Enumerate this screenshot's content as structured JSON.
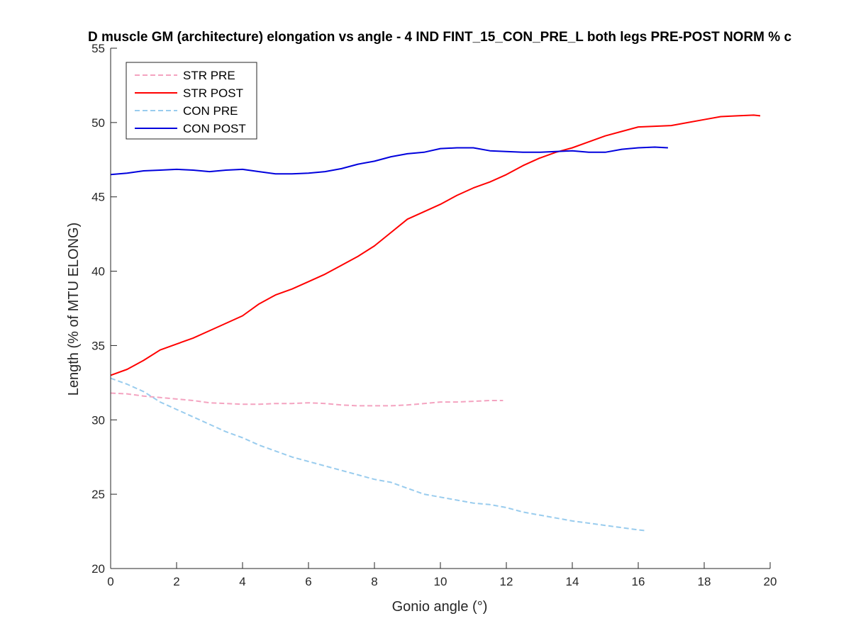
{
  "chart_data": {
    "type": "line",
    "title": "D muscle GM (architecture) elongation vs angle - 4 IND FINT_15_CON_PRE_L both legs PRE-POST NORM % c",
    "xlabel": "Gonio angle (°)",
    "ylabel": "Length (% of MTU ELONG)",
    "xlim": [
      0,
      20
    ],
    "ylim": [
      20,
      55
    ],
    "xticks": [
      0,
      2,
      4,
      6,
      8,
      10,
      12,
      14,
      16,
      18,
      20
    ],
    "yticks": [
      20,
      25,
      30,
      35,
      40,
      45,
      50,
      55
    ],
    "grid": false,
    "legend_position": "top-left",
    "series": [
      {
        "name": "STR PRE",
        "color": "#f4a3c0",
        "style": "dashed",
        "x": [
          0,
          0.5,
          1,
          1.5,
          2,
          2.5,
          3,
          3.5,
          4,
          4.5,
          5,
          5.5,
          6,
          6.5,
          7,
          7.5,
          8,
          8.5,
          9,
          9.5,
          10,
          10.5,
          11,
          11.5,
          11.9
        ],
        "y": [
          31.8,
          31.75,
          31.6,
          31.5,
          31.4,
          31.3,
          31.15,
          31.1,
          31.05,
          31.05,
          31.1,
          31.1,
          31.15,
          31.1,
          31.0,
          30.95,
          30.95,
          30.95,
          31.0,
          31.1,
          31.2,
          31.2,
          31.25,
          31.3,
          31.3
        ]
      },
      {
        "name": "STR POST",
        "color": "#ff0000",
        "style": "solid",
        "x": [
          0,
          0.5,
          1,
          1.5,
          2,
          2.5,
          3,
          3.5,
          4,
          4.5,
          5,
          5.5,
          6,
          6.5,
          7,
          7.5,
          8,
          8.5,
          9,
          9.5,
          10,
          10.5,
          11,
          11.5,
          12,
          12.5,
          13,
          13.5,
          14,
          14.5,
          15,
          15.5,
          16,
          16.5,
          17,
          17.5,
          18,
          18.5,
          19,
          19.5,
          19.7
        ],
        "y": [
          33.0,
          33.4,
          34.0,
          34.7,
          35.1,
          35.5,
          36.0,
          36.5,
          37.0,
          37.8,
          38.4,
          38.8,
          39.3,
          39.8,
          40.4,
          41.0,
          41.7,
          42.6,
          43.5,
          44.0,
          44.5,
          45.1,
          45.6,
          46.0,
          46.5,
          47.1,
          47.6,
          48.0,
          48.3,
          48.7,
          49.1,
          49.4,
          49.7,
          49.75,
          49.8,
          50.0,
          50.2,
          50.4,
          50.45,
          50.5,
          50.45
        ]
      },
      {
        "name": "CON PRE",
        "color": "#99ccee",
        "style": "dashed",
        "x": [
          0,
          0.5,
          1,
          1.5,
          2,
          2.5,
          3,
          3.5,
          4,
          4.5,
          5,
          5.5,
          6,
          6.5,
          7,
          7.5,
          8,
          8.5,
          9,
          9.5,
          10,
          10.5,
          11,
          11.5,
          12,
          12.5,
          13,
          13.5,
          14,
          14.5,
          15,
          15.5,
          16,
          16.2
        ],
        "y": [
          32.8,
          32.4,
          31.9,
          31.2,
          30.7,
          30.2,
          29.7,
          29.2,
          28.8,
          28.3,
          27.9,
          27.5,
          27.2,
          26.9,
          26.6,
          26.3,
          26.0,
          25.8,
          25.4,
          25.0,
          24.8,
          24.6,
          24.4,
          24.3,
          24.1,
          23.8,
          23.6,
          23.4,
          23.2,
          23.05,
          22.9,
          22.75,
          22.6,
          22.55
        ]
      },
      {
        "name": "CON POST",
        "color": "#0000dd",
        "style": "solid",
        "x": [
          0,
          0.5,
          1,
          1.5,
          2,
          2.5,
          3,
          3.5,
          4,
          4.5,
          5,
          5.5,
          6,
          6.5,
          7,
          7.5,
          8,
          8.5,
          9,
          9.5,
          10,
          10.5,
          11,
          11.5,
          12,
          12.5,
          13,
          13.5,
          14,
          14.5,
          15,
          15.5,
          16,
          16.5,
          16.9
        ],
        "y": [
          46.5,
          46.6,
          46.75,
          46.8,
          46.85,
          46.8,
          46.7,
          46.8,
          46.85,
          46.7,
          46.55,
          46.55,
          46.6,
          46.7,
          46.9,
          47.2,
          47.4,
          47.7,
          47.9,
          48.0,
          48.25,
          48.3,
          48.3,
          48.1,
          48.05,
          48.0,
          48.0,
          48.05,
          48.1,
          48.0,
          48.0,
          48.2,
          48.3,
          48.35,
          48.3
        ]
      }
    ]
  }
}
